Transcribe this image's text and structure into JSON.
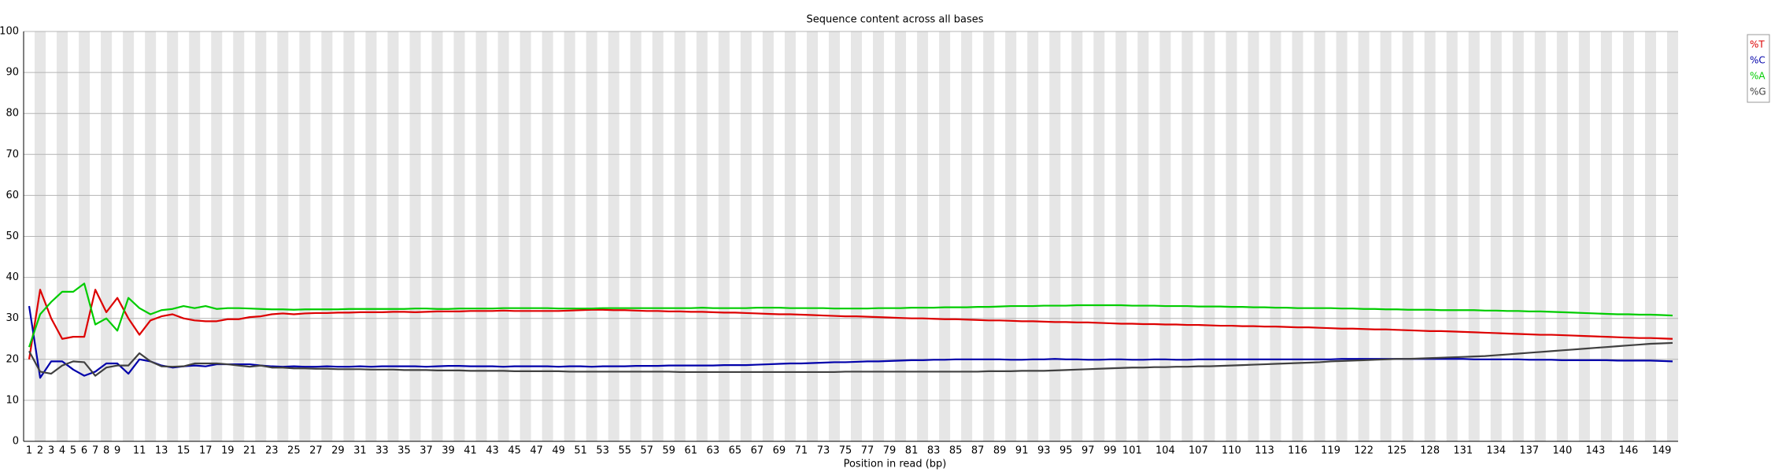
{
  "chart_data": {
    "type": "line",
    "title": "Sequence content across all bases",
    "x_label": "Position in read (bp)",
    "categories": [
      1,
      2,
      3,
      4,
      5,
      6,
      7,
      8,
      9,
      null,
      11,
      null,
      13,
      null,
      15,
      null,
      17,
      null,
      19,
      null,
      21,
      null,
      23,
      null,
      25,
      null,
      27,
      null,
      29,
      null,
      31,
      null,
      33,
      null,
      35,
      null,
      37,
      null,
      39,
      null,
      41,
      null,
      43,
      null,
      45,
      null,
      47,
      null,
      49,
      null,
      51,
      null,
      53,
      null,
      55,
      null,
      57,
      null,
      59,
      null,
      61,
      null,
      63,
      null,
      65,
      null,
      67,
      null,
      69,
      null,
      71,
      null,
      73,
      null,
      75,
      null,
      77,
      null,
      79,
      null,
      81,
      null,
      83,
      null,
      85,
      null,
      87,
      null,
      89,
      null,
      91,
      null,
      93,
      null,
      95,
      null,
      97,
      null,
      99,
      null,
      101,
      null,
      null,
      104,
      null,
      null,
      107,
      null,
      null,
      110,
      null,
      null,
      113,
      null,
      null,
      116,
      null,
      null,
      119,
      null,
      null,
      122,
      null,
      null,
      125,
      null,
      null,
      128,
      null,
      null,
      131,
      null,
      null,
      134,
      null,
      null,
      137,
      null,
      null,
      140,
      null,
      null,
      143,
      null,
      null,
      146,
      null,
      null,
      149,
      null
    ],
    "series": [
      {
        "name": "%T",
        "color": "#dd0000",
        "values": [
          20,
          37,
          30,
          25,
          25.5,
          25.5,
          37,
          31.5,
          35,
          30,
          26,
          29.5,
          30.5,
          31,
          30,
          29.5,
          29.3,
          29.3,
          29.8,
          29.8,
          30.3,
          30.5,
          31,
          31.2,
          31,
          31.2,
          31.3,
          31.3,
          31.4,
          31.4,
          31.5,
          31.5,
          31.5,
          31.6,
          31.6,
          31.5,
          31.6,
          31.7,
          31.7,
          31.7,
          31.8,
          31.8,
          31.8,
          31.9,
          31.8,
          31.8,
          31.8,
          31.8,
          31.8,
          31.9,
          32,
          32.1,
          32.1,
          32,
          32,
          31.9,
          31.8,
          31.8,
          31.7,
          31.7,
          31.6,
          31.6,
          31.5,
          31.4,
          31.4,
          31.3,
          31.2,
          31.1,
          31,
          31,
          30.9,
          30.8,
          30.7,
          30.6,
          30.5,
          30.5,
          30.4,
          30.3,
          30.2,
          30.1,
          30,
          30,
          29.9,
          29.8,
          29.8,
          29.7,
          29.6,
          29.5,
          29.5,
          29.4,
          29.3,
          29.3,
          29.2,
          29.1,
          29.1,
          29,
          29,
          28.9,
          28.8,
          28.7,
          28.7,
          28.6,
          28.6,
          28.5,
          28.5,
          28.4,
          28.4,
          28.3,
          28.2,
          28.2,
          28.1,
          28.1,
          28,
          28,
          27.9,
          27.8,
          27.8,
          27.7,
          27.6,
          27.5,
          27.5,
          27.4,
          27.3,
          27.3,
          27.2,
          27.1,
          27,
          26.9,
          26.9,
          26.8,
          26.7,
          26.6,
          26.5,
          26.4,
          26.3,
          26.2,
          26.1,
          26,
          26,
          25.9,
          25.8,
          25.7,
          25.6,
          25.5,
          25.4,
          25.3,
          25.2,
          25.2,
          25.1,
          25
        ]
      },
      {
        "name": "%C",
        "color": "#0000aa",
        "values": [
          33,
          15.5,
          19.5,
          19.5,
          17.5,
          16,
          17,
          19,
          19,
          16.5,
          20,
          19.5,
          18.5,
          18,
          18.3,
          18.5,
          18.3,
          18.8,
          18.8,
          18.8,
          18.8,
          18.5,
          18.3,
          18.2,
          18.3,
          18.2,
          18.2,
          18.3,
          18.2,
          18.2,
          18.3,
          18.2,
          18.3,
          18.3,
          18.3,
          18.3,
          18.2,
          18.3,
          18.4,
          18.4,
          18.3,
          18.3,
          18.3,
          18.2,
          18.3,
          18.3,
          18.3,
          18.3,
          18.2,
          18.3,
          18.3,
          18.2,
          18.3,
          18.3,
          18.3,
          18.4,
          18.4,
          18.4,
          18.5,
          18.5,
          18.5,
          18.5,
          18.5,
          18.6,
          18.6,
          18.6,
          18.7,
          18.8,
          18.9,
          19,
          19,
          19.1,
          19.2,
          19.3,
          19.3,
          19.4,
          19.5,
          19.5,
          19.6,
          19.7,
          19.8,
          19.8,
          19.9,
          19.9,
          20,
          20,
          20,
          20,
          20,
          19.9,
          19.9,
          20,
          20,
          20.1,
          20,
          20,
          19.9,
          19.9,
          20,
          20,
          19.9,
          19.9,
          20,
          20,
          19.9,
          19.9,
          20,
          20,
          20,
          20,
          20,
          20,
          20,
          20,
          20,
          20,
          20,
          20,
          20,
          20.1,
          20.1,
          20.1,
          20.1,
          20.1,
          20.1,
          20.1,
          20.1,
          20.1,
          20.1,
          20.1,
          20.1,
          20,
          20,
          20,
          20,
          20,
          19.9,
          19.9,
          19.9,
          19.8,
          19.8,
          19.8,
          19.8,
          19.8,
          19.7,
          19.7,
          19.7,
          19.7,
          19.6,
          19.5
        ]
      },
      {
        "name": "%A",
        "color": "#00cc00",
        "values": [
          23,
          31,
          34,
          36.5,
          36.5,
          38.5,
          28.5,
          30,
          27,
          35,
          32.5,
          31,
          32,
          32.3,
          33,
          32.5,
          33,
          32.3,
          32.5,
          32.5,
          32.4,
          32.3,
          32.2,
          32.2,
          32.1,
          32.2,
          32.2,
          32.2,
          32.2,
          32.3,
          32.3,
          32.3,
          32.3,
          32.3,
          32.3,
          32.4,
          32.4,
          32.3,
          32.3,
          32.4,
          32.4,
          32.4,
          32.4,
          32.5,
          32.5,
          32.5,
          32.5,
          32.5,
          32.4,
          32.4,
          32.4,
          32.4,
          32.5,
          32.5,
          32.5,
          32.5,
          32.5,
          32.5,
          32.5,
          32.5,
          32.5,
          32.6,
          32.5,
          32.5,
          32.5,
          32.5,
          32.6,
          32.6,
          32.6,
          32.5,
          32.5,
          32.5,
          32.5,
          32.4,
          32.4,
          32.4,
          32.4,
          32.5,
          32.5,
          32.5,
          32.6,
          32.6,
          32.6,
          32.7,
          32.7,
          32.7,
          32.8,
          32.8,
          32.9,
          33,
          33,
          33,
          33.1,
          33.1,
          33.1,
          33.2,
          33.2,
          33.2,
          33.2,
          33.2,
          33.1,
          33.1,
          33.1,
          33,
          33,
          33,
          32.9,
          32.9,
          32.9,
          32.8,
          32.8,
          32.7,
          32.7,
          32.6,
          32.6,
          32.5,
          32.5,
          32.5,
          32.5,
          32.4,
          32.4,
          32.3,
          32.3,
          32.2,
          32.2,
          32.1,
          32.1,
          32.1,
          32,
          32,
          32,
          32,
          31.9,
          31.9,
          31.8,
          31.8,
          31.7,
          31.7,
          31.6,
          31.5,
          31.4,
          31.3,
          31.2,
          31.1,
          31,
          31,
          30.9,
          30.9,
          30.8,
          30.7
        ]
      },
      {
        "name": "%G",
        "color": "#404040",
        "values": [
          22,
          17,
          16.5,
          18.5,
          19.5,
          19.3,
          16,
          18,
          18.5,
          18.5,
          21.5,
          19.5,
          18.3,
          18.2,
          18.3,
          19,
          19,
          19,
          18.8,
          18.5,
          18.2,
          18.5,
          18,
          18,
          17.8,
          17.8,
          17.7,
          17.7,
          17.6,
          17.6,
          17.6,
          17.5,
          17.5,
          17.5,
          17.4,
          17.4,
          17.4,
          17.3,
          17.3,
          17.3,
          17.2,
          17.2,
          17.2,
          17.2,
          17.1,
          17.1,
          17.1,
          17.1,
          17.1,
          17,
          17,
          17,
          17,
          17,
          17,
          17,
          17,
          17,
          17,
          16.9,
          16.9,
          16.9,
          16.9,
          16.9,
          16.9,
          16.9,
          16.9,
          16.9,
          16.9,
          16.9,
          16.9,
          16.9,
          16.9,
          16.9,
          17,
          17,
          17,
          17,
          17,
          17,
          17,
          17,
          17,
          17,
          17,
          17,
          17,
          17.1,
          17.1,
          17.1,
          17.2,
          17.2,
          17.2,
          17.3,
          17.4,
          17.5,
          17.6,
          17.7,
          17.8,
          17.9,
          18,
          18,
          18.1,
          18.1,
          18.2,
          18.2,
          18.3,
          18.3,
          18.4,
          18.5,
          18.6,
          18.7,
          18.8,
          18.9,
          19,
          19.1,
          19.2,
          19.3,
          19.5,
          19.6,
          19.7,
          19.8,
          19.9,
          20,
          20.1,
          20.1,
          20.2,
          20.3,
          20.4,
          20.5,
          20.6,
          20.7,
          20.8,
          21,
          21.2,
          21.4,
          21.6,
          21.8,
          22,
          22.2,
          22.4,
          22.6,
          22.8,
          23,
          23.2,
          23.4,
          23.6,
          23.8,
          23.9,
          24
        ]
      }
    ],
    "ylim": [
      0,
      100
    ],
    "yticks": [
      0,
      10,
      20,
      30,
      40,
      50,
      60,
      70,
      80,
      90,
      100
    ],
    "grid": true,
    "legend": "upper right"
  }
}
